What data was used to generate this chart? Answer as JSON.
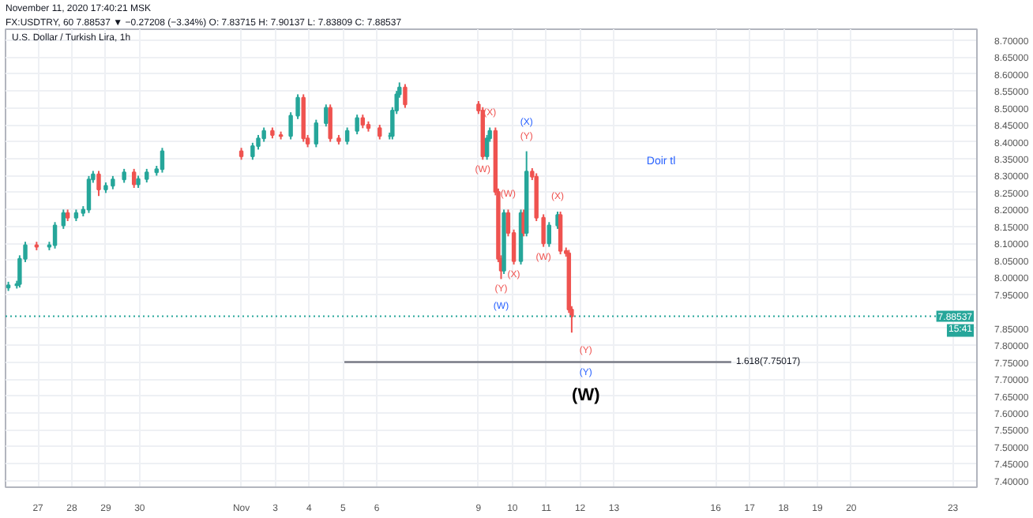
{
  "chart_data": {
    "type": "candlestick",
    "title": "U.S. Dollar / Turkish Lira, 1h",
    "subtitle": "FX:USDTRY, 60 7.88537 ▼ −0.27208 (−3.34%) O: 7.83715 H: 7.90137 L: 7.83809 C: 7.88537",
    "x": [
      "2020-10-26T03:00",
      "2020-10-26T09:00",
      "2020-10-26T11:00",
      "2020-10-26T15:00",
      "2020-10-26T23:00",
      "2020-10-27T08:00",
      "2020-10-27T12:00",
      "2020-10-27T18:00",
      "2020-10-27T21:00",
      "2020-10-28T03:00",
      "2020-10-28T08:00",
      "2020-10-28T12:00",
      "2020-10-28T15:00",
      "2020-10-28T19:00",
      "2020-10-29T00:00",
      "2020-10-29T05:00",
      "2020-10-29T13:00",
      "2020-10-29T20:00",
      "2020-10-29T23:00",
      "2020-10-30T05:00",
      "2020-10-30T12:00",
      "2020-10-30T16:00",
      "2020-11-02T00:00",
      "2020-11-02T08:00",
      "2020-11-02T12:00",
      "2020-11-02T16:00",
      "2020-11-02T22:00",
      "2020-11-03T04:00",
      "2020-11-03T11:00",
      "2020-11-03T16:00",
      "2020-11-03T20:00",
      "2020-11-03T23:00",
      "2020-11-04T05:00",
      "2020-11-04T12:00",
      "2020-11-04T15:00",
      "2020-11-04T21:00",
      "2020-11-05T03:00",
      "2020-11-05T10:00",
      "2020-11-05T14:00",
      "2020-11-05T18:00",
      "2020-11-06T02:00",
      "2020-11-06T09:00",
      "2020-11-06T11:00",
      "2020-11-06T14:00",
      "2020-11-06T16:00",
      "2020-11-06T20:00",
      "2020-11-09T00:00",
      "2020-11-09T03:00",
      "2020-11-09T06:00",
      "2020-11-09T08:00",
      "2020-11-09T12:00",
      "2020-11-09T14:00",
      "2020-11-09T16:00",
      "2020-11-09T18:00",
      "2020-11-09T21:00",
      "2020-11-10T01:00",
      "2020-11-10T06:00",
      "2020-11-10T08:00",
      "2020-11-10T10:00",
      "2020-11-10T14:00",
      "2020-11-10T17:00",
      "2020-11-10T22:00",
      "2020-11-11T02:00",
      "2020-11-11T08:00",
      "2020-11-11T10:00",
      "2020-11-11T14:00",
      "2020-11-11T16:00",
      "2020-11-11T18:00"
    ],
    "ohlc": [
      [
        7.97,
        7.987,
        7.96,
        7.977
      ],
      [
        7.977,
        7.99,
        7.967,
        7.98
      ],
      [
        7.98,
        8.065,
        7.97,
        8.055
      ],
      [
        8.055,
        8.105,
        8.045,
        8.095
      ],
      [
        8.095,
        8.105,
        8.08,
        8.09
      ],
      [
        8.09,
        8.105,
        8.08,
        8.095
      ],
      [
        8.095,
        8.163,
        8.085,
        8.153
      ],
      [
        8.153,
        8.2,
        8.143,
        8.19
      ],
      [
        8.19,
        8.2,
        8.166,
        8.176
      ],
      [
        8.176,
        8.2,
        8.166,
        8.19
      ],
      [
        8.19,
        8.21,
        8.18,
        8.2
      ],
      [
        8.2,
        8.299,
        8.19,
        8.289
      ],
      [
        8.289,
        8.314,
        8.279,
        8.304
      ],
      [
        8.304,
        8.314,
        8.24,
        8.259
      ],
      [
        8.259,
        8.28,
        8.249,
        8.27
      ],
      [
        8.27,
        8.299,
        8.26,
        8.289
      ],
      [
        8.289,
        8.32,
        8.279,
        8.31
      ],
      [
        8.31,
        8.32,
        8.264,
        8.274
      ],
      [
        8.274,
        8.3,
        8.264,
        8.29
      ],
      [
        8.29,
        8.32,
        8.28,
        8.31
      ],
      [
        8.31,
        8.329,
        8.3,
        8.319
      ],
      [
        8.319,
        8.382,
        8.309,
        8.372
      ],
      [
        8.372,
        8.382,
        8.347,
        8.357
      ],
      [
        8.357,
        8.397,
        8.347,
        8.387
      ],
      [
        8.387,
        8.42,
        8.377,
        8.41
      ],
      [
        8.41,
        8.442,
        8.4,
        8.432
      ],
      [
        8.432,
        8.442,
        8.41,
        8.42
      ],
      [
        8.42,
        8.43,
        8.407,
        8.417
      ],
      [
        8.417,
        8.487,
        8.407,
        8.477
      ],
      [
        8.477,
        8.54,
        8.467,
        8.53
      ],
      [
        8.53,
        8.54,
        8.4,
        8.41
      ],
      [
        8.41,
        8.42,
        8.384,
        8.394
      ],
      [
        8.394,
        8.465,
        8.384,
        8.455
      ],
      [
        8.455,
        8.51,
        8.445,
        8.5
      ],
      [
        8.5,
        8.51,
        8.4,
        8.41
      ],
      [
        8.41,
        8.42,
        8.392,
        8.402
      ],
      [
        8.402,
        8.442,
        8.392,
        8.432
      ],
      [
        8.432,
        8.48,
        8.422,
        8.47
      ],
      [
        8.47,
        8.48,
        8.44,
        8.45
      ],
      [
        8.45,
        8.46,
        8.43,
        8.44
      ],
      [
        8.44,
        8.45,
        8.407,
        8.417
      ],
      [
        8.417,
        8.427,
        8.407,
        8.417
      ],
      [
        8.417,
        8.502,
        8.407,
        8.492
      ],
      [
        8.492,
        8.55,
        8.482,
        8.54
      ],
      [
        8.54,
        8.575,
        8.53,
        8.56
      ],
      [
        8.56,
        8.57,
        8.5,
        8.51
      ],
      [
        8.51,
        8.52,
        8.482,
        8.492
      ],
      [
        8.492,
        8.502,
        8.347,
        8.357
      ],
      [
        8.357,
        8.42,
        8.347,
        8.41
      ],
      [
        8.41,
        8.442,
        8.4,
        8.432
      ],
      [
        8.432,
        8.442,
        8.242,
        8.252
      ],
      [
        8.252,
        8.262,
        8.045,
        8.055
      ],
      [
        8.055,
        8.065,
        7.995,
        8.02
      ],
      [
        8.02,
        8.2,
        8.01,
        8.19
      ],
      [
        8.19,
        8.2,
        8.121,
        8.131
      ],
      [
        8.131,
        8.141,
        8.038,
        8.048
      ],
      [
        8.048,
        8.2,
        8.038,
        8.19
      ],
      [
        8.19,
        8.2,
        8.121,
        8.131
      ],
      [
        8.131,
        8.372,
        8.121,
        8.312
      ],
      [
        8.312,
        8.322,
        8.287,
        8.297
      ],
      [
        8.297,
        8.307,
        8.166,
        8.176
      ],
      [
        8.176,
        8.186,
        8.09,
        8.1
      ],
      [
        8.1,
        8.163,
        8.09,
        8.153
      ],
      [
        8.153,
        8.194,
        8.143,
        8.184
      ],
      [
        8.184,
        8.194,
        8.068,
        8.078
      ],
      [
        8.078,
        8.088,
        8.061,
        8.071
      ],
      [
        8.071,
        8.081,
        7.895,
        7.905
      ],
      [
        7.905,
        7.915,
        7.837,
        7.885
      ]
    ],
    "colors": [
      "#26a69a",
      "#26a69a",
      "#26a69a",
      "#26a69a",
      "#ef5350",
      "#26a69a",
      "#26a69a",
      "#26a69a",
      "#ef5350",
      "#26a69a",
      "#26a69a",
      "#26a69a",
      "#26a69a",
      "#ef5350",
      "#26a69a",
      "#26a69a",
      "#26a69a",
      "#ef5350",
      "#26a69a",
      "#26a69a",
      "#26a69a",
      "#26a69a",
      "#ef5350",
      "#26a69a",
      "#26a69a",
      "#26a69a",
      "#ef5350",
      "#ef5350",
      "#26a69a",
      "#26a69a",
      "#ef5350",
      "#ef5350",
      "#26a69a",
      "#26a69a",
      "#ef5350",
      "#ef5350",
      "#26a69a",
      "#26a69a",
      "#ef5350",
      "#ef5350",
      "#ef5350",
      "#26a69a",
      "#26a69a",
      "#26a69a",
      "#26a69a",
      "#ef5350",
      "#ef5350",
      "#ef5350",
      "#26a69a",
      "#26a69a",
      "#ef5350",
      "#ef5350",
      "#ef5350",
      "#26a69a",
      "#ef5350",
      "#ef5350",
      "#26a69a",
      "#ef5350",
      "#26a69a",
      "#ef5350",
      "#ef5350",
      "#ef5350",
      "#26a69a",
      "#26a69a",
      "#ef5350",
      "#ef5350",
      "#ef5350",
      "#ef5350"
    ],
    "series": [
      {
        "type": "line",
        "color": "#787b86",
        "x": [
          "2020-11-05T01:00",
          "2020-11-16T11:00"
        ],
        "values": [
          7.75017,
          7.75017
        ]
      }
    ],
    "xlim": [
      "2020-10-26T01:00",
      "2020-11-23T17:00"
    ],
    "xticks": [
      {
        "value": "2020-10-27",
        "label": "27"
      },
      {
        "value": "2020-10-28",
        "label": "28"
      },
      {
        "value": "2020-10-29",
        "label": "29"
      },
      {
        "value": "2020-10-30",
        "label": "30"
      },
      {
        "value": "2020-11-02",
        "label": "Nov"
      },
      {
        "value": "2020-11-03",
        "label": "3"
      },
      {
        "value": "2020-11-04",
        "label": "4"
      },
      {
        "value": "2020-11-05",
        "label": "5"
      },
      {
        "value": "2020-11-06",
        "label": "6"
      },
      {
        "value": "2020-11-09",
        "label": "9"
      },
      {
        "value": "2020-11-10",
        "label": "10"
      },
      {
        "value": "2020-11-11",
        "label": "11"
      },
      {
        "value": "2020-11-12",
        "label": "12"
      },
      {
        "value": "2020-11-13",
        "label": "13"
      },
      {
        "value": "2020-11-16",
        "label": "16"
      },
      {
        "value": "2020-11-17",
        "label": "17"
      },
      {
        "value": "2020-11-18",
        "label": "18"
      },
      {
        "value": "2020-11-19",
        "label": "19"
      },
      {
        "value": "2020-11-20",
        "label": "20"
      },
      {
        "value": "2020-11-23",
        "label": "23"
      }
    ],
    "ylim": [
      7.381,
      8.732
    ],
    "yticks": [
      {
        "value": 8.7,
        "label": "8.70000"
      },
      {
        "value": 8.65,
        "label": "8.65000"
      },
      {
        "value": 8.6,
        "label": "8.60000"
      },
      {
        "value": 8.55,
        "label": "8.55000"
      },
      {
        "value": 8.5,
        "label": "8.50000"
      },
      {
        "value": 8.45,
        "label": "8.45000"
      },
      {
        "value": 8.4,
        "label": "8.40000"
      },
      {
        "value": 8.35,
        "label": "8.35000"
      },
      {
        "value": 8.3,
        "label": "8.30000"
      },
      {
        "value": 8.25,
        "label": "8.25000"
      },
      {
        "value": 8.2,
        "label": "8.20000"
      },
      {
        "value": 8.15,
        "label": "8.15000"
      },
      {
        "value": 8.1,
        "label": "8.10000"
      },
      {
        "value": 8.05,
        "label": "8.05000"
      },
      {
        "value": 8.0,
        "label": "8.00000"
      },
      {
        "value": 7.95,
        "label": "7.95000"
      },
      {
        "value": 7.85,
        "label": "7.85000"
      },
      {
        "value": 7.8,
        "label": "7.80000"
      },
      {
        "value": 7.75,
        "label": "7.75000"
      },
      {
        "value": 7.7,
        "label": "7.70000"
      },
      {
        "value": 7.65,
        "label": "7.65000"
      },
      {
        "value": 7.6,
        "label": "7.60000"
      },
      {
        "value": 7.55,
        "label": "7.55000"
      },
      {
        "value": 7.5,
        "label": "7.50000"
      },
      {
        "value": 7.45,
        "label": "7.45000"
      },
      {
        "value": 7.4,
        "label": "7.40000"
      }
    ],
    "ref_lines": [
      {
        "axis": "y",
        "value": 7.88537,
        "label": "7.88537",
        "color": "#26a69a",
        "line_style": "dotted"
      }
    ],
    "grid": true,
    "annotations": [
      "November 11, 2020 17:40:21 MSK",
      "15:41",
      "Doir tl",
      {
        "text": "(X)",
        "x": "2020-11-09T08:00",
        "y": 8.442
      },
      {
        "text": "(W)",
        "x": "2020-11-09T03:00",
        "y": 8.347
      },
      {
        "text": "(W)",
        "x": "2020-11-09T21:00",
        "y": 8.2
      },
      {
        "text": "(Y)",
        "x": "2020-11-09T16:00",
        "y": 7.995
      },
      {
        "text": "(X)",
        "x": "2020-11-10T01:00",
        "y": 8.038
      },
      {
        "text": "(Y)",
        "x": "2020-11-10T10:00",
        "y": 8.372
      },
      {
        "text": "(W)",
        "x": "2020-11-10T22:00",
        "y": 8.09
      },
      {
        "text": "(X)",
        "x": "2020-11-11T08:00",
        "y": 8.194
      },
      {
        "text": "(Y)",
        "x": "2020-11-12T04:00",
        "y": 7.75017
      },
      {
        "text": "(W)",
        "x": "2020-11-09T16:00",
        "y": 7.995
      },
      {
        "text": "(X)",
        "x": "2020-11-10T10:00",
        "y": 8.372
      },
      {
        "text": "(Y)",
        "x": "2020-11-12T04:00",
        "y": 7.75017
      },
      {
        "text": "(W)",
        "x": "2020-11-12T04:00",
        "y": 7.75017
      },
      {
        "text": "1.618(7.75017)",
        "x": "2020-11-16T11:00",
        "y": 7.75017
      }
    ]
  }
}
